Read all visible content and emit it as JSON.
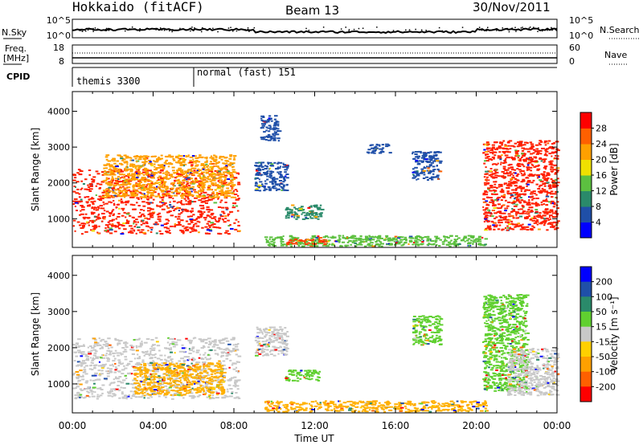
{
  "header": {
    "station": "Hokkaido (fitACF)",
    "beam": "Beam 13",
    "date": "30/Nov/2011"
  },
  "top_panels": {
    "nsky_label": "N.Sky",
    "nsearch_label": "N.Search",
    "nsky_ticks": [
      "10^5",
      "10^0"
    ],
    "nsearch_ticks": [
      "10^5",
      "10^0"
    ],
    "freq_label_1": "Freq.",
    "freq_label_2": "[MHz]",
    "freq_ticks": [
      "18",
      "8"
    ],
    "nave_label": "Nave",
    "nave_ticks": [
      "60",
      "0"
    ],
    "cpid_label": "CPID",
    "cpid_modes": [
      {
        "name": "themis 3300",
        "start_hour": 0
      },
      {
        "name": "normal (fast) 151",
        "start_hour": 6
      }
    ]
  },
  "chart_data": [
    {
      "type": "heatmap",
      "title": "",
      "ylabel": "Slant Range [km]",
      "yticks": [
        "1000",
        "2000",
        "3000",
        "4000"
      ],
      "ylim": [
        200,
        4550
      ],
      "xlim": [
        0,
        24
      ],
      "colorbar": {
        "label": "Power [dB]",
        "ticks": [
          "4",
          "8",
          "12",
          "16",
          "20",
          "24",
          "28"
        ],
        "range": [
          0,
          32
        ],
        "colors": [
          "#0000ff",
          "#1f4fa8",
          "#2a8a6a",
          "#5cc040",
          "#f0e000",
          "#ffa000",
          "#ff6000",
          "#ff0000"
        ]
      },
      "regions": [
        {
          "x0": 0.0,
          "x1": 8.2,
          "r0": 600,
          "r1": 2400,
          "color": "#ff2000"
        },
        {
          "x0": 1.5,
          "x1": 8.0,
          "r0": 1600,
          "r1": 2800,
          "color": "#ffa000"
        },
        {
          "x0": 9.0,
          "x1": 10.6,
          "r0": 1800,
          "r1": 2600,
          "color": "#1f4fa8"
        },
        {
          "x0": 10.5,
          "x1": 12.3,
          "r0": 1000,
          "r1": 1400,
          "color": "#2a8a6a"
        },
        {
          "x0": 9.5,
          "x1": 20.5,
          "r0": 250,
          "r1": 550,
          "color": "#5cc040"
        },
        {
          "x0": 10.5,
          "x1": 12.5,
          "r0": 300,
          "r1": 450,
          "color": "#ff4000"
        },
        {
          "x0": 14.5,
          "x1": 15.7,
          "r0": 2850,
          "r1": 3100,
          "color": "#1f4fa8"
        },
        {
          "x0": 16.8,
          "x1": 18.2,
          "r0": 2100,
          "r1": 2900,
          "color": "#1f4fa8"
        },
        {
          "x0": 20.3,
          "x1": 24.0,
          "r0": 700,
          "r1": 3200,
          "color": "#ff2000"
        },
        {
          "x0": 9.3,
          "x1": 10.2,
          "r0": 3200,
          "r1": 3900,
          "color": "#1f4fa8"
        }
      ]
    },
    {
      "type": "heatmap",
      "title": "",
      "ylabel": "Slant Range [km]",
      "yticks": [
        "1000",
        "2000",
        "3000",
        "4000"
      ],
      "ylim": [
        200,
        4550
      ],
      "xlim": [
        0,
        24
      ],
      "xticks": [
        "00:00",
        "04:00",
        "08:00",
        "12:00",
        "16:00",
        "20:00",
        "00:00"
      ],
      "xlabel": "Time UT",
      "colorbar": {
        "label": "Velocity [m s⁻¹]",
        "ticks": [
          "200",
          "100",
          "50",
          "15",
          "-15",
          "-50",
          "-100",
          "-200"
        ],
        "range": [
          -250,
          250
        ],
        "colors": [
          "#ff0000",
          "#ff6000",
          "#ffa000",
          "#ffd000",
          "#c8c8c8",
          "#60d030",
          "#2a8a6a",
          "#1f4fa8",
          "#0000ff"
        ]
      },
      "regions": [
        {
          "x0": 0.0,
          "x1": 8.2,
          "r0": 600,
          "r1": 2300,
          "color": "#c8c8c8"
        },
        {
          "x0": 3.0,
          "x1": 7.5,
          "r0": 700,
          "r1": 1600,
          "color": "#ffb000"
        },
        {
          "x0": 10.5,
          "x1": 12.3,
          "r0": 1100,
          "r1": 1400,
          "color": "#60d030"
        },
        {
          "x0": 9.5,
          "x1": 20.5,
          "r0": 250,
          "r1": 550,
          "color": "#ffb000"
        },
        {
          "x0": 9.0,
          "x1": 10.6,
          "r0": 1800,
          "r1": 2600,
          "color": "#c8c8c8"
        },
        {
          "x0": 16.8,
          "x1": 18.2,
          "r0": 2100,
          "r1": 2900,
          "color": "#60d030"
        },
        {
          "x0": 20.3,
          "x1": 22.5,
          "r0": 800,
          "r1": 3500,
          "color": "#60d030"
        },
        {
          "x0": 21.5,
          "x1": 24.0,
          "r0": 700,
          "r1": 2000,
          "color": "#c8c8c8"
        }
      ]
    }
  ]
}
